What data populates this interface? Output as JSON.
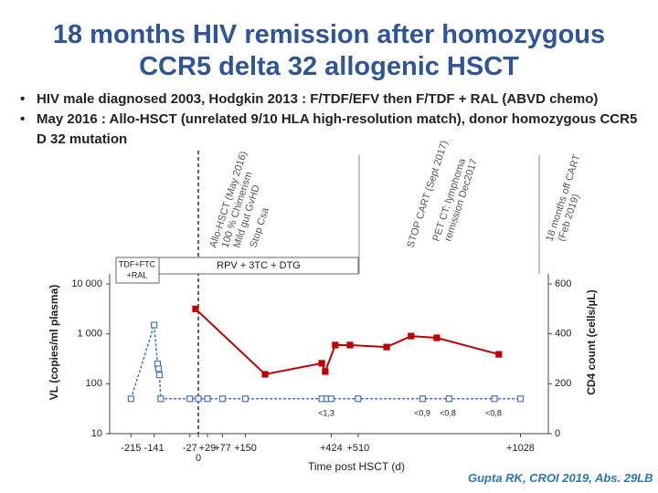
{
  "title": [
    "18 months HIV remission after homozygous",
    "CCR5 delta 32 allogenic HSCT"
  ],
  "bullets": [
    "HIV male diagnosed 2003, Hodgkin 2013 : F/TDF/EFV then F/TDF + RAL (ABVD chemo)",
    "May 2016 : Allo-HSCT (unrelated 9/10 HLA high-resolution match), donor homozygous CCR5 D 32 mutation"
  ],
  "events": [
    {
      "lines": [
        "Allo-HSCT (May 2016)",
        "100 % Chimerism",
        "Mild gut GvHD"
      ]
    },
    {
      "lines": [
        "Stop Csa"
      ]
    },
    {
      "lines": [
        "STOP CART (Sept 2017)"
      ]
    },
    {
      "lines": [
        "PET CT: lymphoma",
        "remission Dec2017"
      ]
    },
    {
      "lines": [
        "18 months off CART",
        "(Feb 2019)"
      ]
    }
  ],
  "treatments": [
    {
      "lines": [
        "TDF+FTC",
        "+RAL"
      ]
    },
    {
      "lines": [
        "RPV + 3TC + DTG"
      ]
    }
  ],
  "detection_labels": [
    "<1,3",
    "<0,9",
    "<0,8",
    "<0,8"
  ],
  "citation": "Gupta RK, CROI 2019, Abs. 29LB",
  "chart_data": {
    "type": "line",
    "xlabel": "Time post HSCT (d)",
    "ylabel": "VL (copies/ml plasma)",
    "y2label": "CD4 count (cells/µL)",
    "xlim": [
      -283,
      1117
    ],
    "xticks": [
      -215,
      -141,
      {
        "value": -27,
        "label": "-27"
      },
      0,
      {
        "value": 29,
        "label": "+29"
      },
      {
        "value": 77,
        "label": "+77"
      },
      {
        "value": 150,
        "label": "+150"
      },
      {
        "value": 424,
        "label": "+424"
      },
      {
        "value": 510,
        "label": "+510"
      },
      {
        "value": 1028,
        "label": "+1028"
      }
    ],
    "ylim": [
      10,
      10000
    ],
    "log_y": true,
    "yticks": [
      10,
      100,
      {
        "value": 1000,
        "label": "1 000"
      },
      {
        "value": 10000,
        "label": "10 000"
      }
    ],
    "y2lim": [
      0,
      600
    ],
    "y2ticks": [
      0,
      200,
      400,
      600
    ],
    "series": [
      {
        "color": "#4472c4",
        "x": [
          -215,
          -141,
          -130,
          -127,
          -124,
          -120,
          -27,
          0,
          29,
          77,
          150,
          394,
          410,
          424,
          510,
          716,
          800,
          945,
          1028
        ],
        "values": [
          50,
          1500,
          250,
          200,
          150,
          50,
          50,
          50,
          50,
          50,
          50,
          50,
          50,
          50,
          50,
          50,
          50,
          50,
          50
        ]
      },
      {
        "color": "#c00000",
        "axis": "y2",
        "x": [
          -9,
          213,
          394,
          405,
          437,
          484,
          601,
          679,
          761,
          959
        ],
        "values": [
          500,
          238,
          282,
          249,
          355,
          355,
          347,
          391,
          384,
          318
        ]
      }
    ]
  }
}
